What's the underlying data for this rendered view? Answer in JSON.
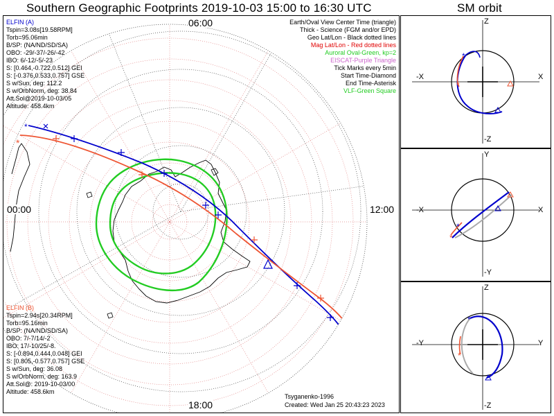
{
  "titles": {
    "main": "Southern Geographic Footprints 2019-10-03 15:00 to 16:30 UTC",
    "orbit": "SM orbit"
  },
  "map": {
    "hour_labels": {
      "top": "06:00",
      "left": "00:00",
      "right": "12:00",
      "bottom": "18:00"
    },
    "legend": [
      {
        "text": "Earth/Oval View Center Time (triangle)",
        "color": "#000000"
      },
      {
        "text": "Thick - Science (FGM and/or EPD)",
        "color": "#000000"
      },
      {
        "text": "Geo Lat/Lon - Black dotted lines",
        "color": "#000000"
      },
      {
        "text": "Mag Lat/Lon - Red dotted lines",
        "color": "#e00000"
      },
      {
        "text": "Auroral Oval-Green, kp=2",
        "color": "#22cc22"
      },
      {
        "text": "EISCAT-Purple Triangle",
        "color": "#cc66cc"
      },
      {
        "text": "Tick Marks every 5min",
        "color": "#000000"
      },
      {
        "text": "Start Time-Diamond",
        "color": "#000000"
      },
      {
        "text": "End Time-Asterisk",
        "color": "#000000"
      },
      {
        "text": "VLF-Green Square",
        "color": "#22cc22"
      }
    ],
    "elfin_a": {
      "name": "ELFIN (A)",
      "color": "#0000cc",
      "lines": [
        "Tspin=3.08s[19.58RPM]",
        "Torb=95.06min",
        "B/SP: (NA/ND/SD/SA)",
        "OBO: -29/-37/-26/-42",
        "IBO: 6/-12/-5/-23",
        "S: [0.464,-0.722,0.512] GEI",
        "S: [-0.376,0.533,0.757] GSE",
        "S w/Sun, deg: 112.2",
        "S w/OrbNorm, deg: 38.84",
        "Att.Sol@2019-10-03/05",
        "Altitude: 458.4km"
      ]
    },
    "elfin_b": {
      "name": "ELFIN (B)",
      "color": "#ee5533",
      "lines": [
        "Tspin=2.94s[20.34RPM]",
        "Torb=95.16min",
        "B/SP: (NA/ND/SD/SA)",
        "OBO: 7/-7/14/-2",
        "IBO: 17/-10/25/-8.",
        "S: [-0.894,0.444,0.048] GEI",
        "S: [0.805,-0.577,0.757] GSE",
        "S w/Sun, deg: 36.08",
        "S w/OrbNorm, deg: 163.9",
        "Att.Sol@: 2019-10-03/00",
        "Altitude: 458.6km"
      ]
    },
    "footer_left": "Tsyganenko-1996",
    "footer_created": "Created: Wed Jan 25 20:43:23 2023"
  },
  "orbit_panels": [
    {
      "top": "Z",
      "bottom": "-Z",
      "left": "-X",
      "right": "X"
    },
    {
      "top": "Y",
      "bottom": "-Y",
      "left": "-X",
      "right": "X"
    },
    {
      "top": "Z",
      "bottom": "-Z",
      "left": "-Y",
      "right": "Y"
    }
  ],
  "colors": {
    "elfin_a": "#0000cc",
    "elfin_b": "#ee5533",
    "oval": "#22cc22",
    "mag_grid": "#e08080",
    "geo_grid": "#444444",
    "orbit_back": "#aaaaaa"
  }
}
